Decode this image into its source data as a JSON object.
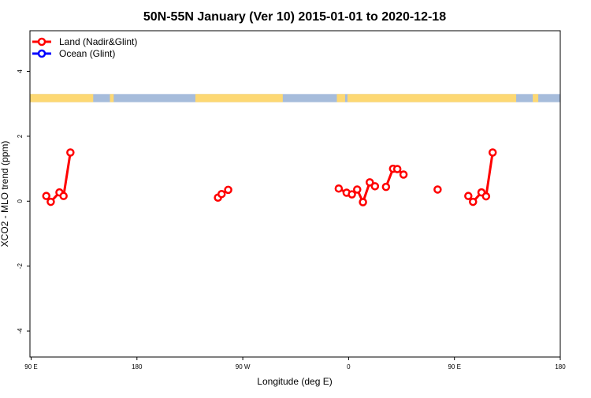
{
  "chart_data": {
    "type": "line",
    "title": "50N-55N January (Ver 10)   2015-01-01 to 2020-12-18",
    "xlabel": "Longitude (deg E)",
    "ylabel": "XCO2 - MLO trend (ppm)",
    "xlim": [
      89,
      540
    ],
    "ylim": [
      -4.8,
      5.25
    ],
    "x_ticks": [
      90,
      180,
      270,
      360,
      450,
      540
    ],
    "x_tick_labels": [
      "90 E",
      "180",
      "90 W",
      "0",
      "90 E",
      "180"
    ],
    "y_ticks": [
      -4,
      -2,
      0,
      2,
      4
    ],
    "y_tick_labels": [
      "-4",
      "-2",
      "0",
      "2",
      "4"
    ],
    "grid": false,
    "legend": {
      "placement": "top-left",
      "entries": [
        {
          "label": "Land (Nadir&Glint)",
          "color": "#ff0000"
        },
        {
          "label": "Ocean (Glint)",
          "color": "#0000ff"
        }
      ]
    },
    "map_strip": {
      "land_color": "#fdd873",
      "ocean_color": "#a6bcdb",
      "y_range": [
        3.05,
        3.3
      ],
      "land_lon_ranges": [
        [
          89,
          142.8
        ],
        [
          157,
          160.2
        ],
        [
          229.7,
          304
        ],
        [
          350,
          357
        ],
        [
          359,
          502.5
        ],
        [
          516.6,
          521.3
        ]
      ]
    },
    "series": [
      {
        "name": "Land (Nadir&Glint)",
        "color": "#ff0000",
        "segments": [
          [
            [
              102.9,
              0.16
            ],
            [
              106.7,
              -0.02
            ],
            [
              114.1,
              0.27
            ],
            [
              117.6,
              0.16
            ],
            [
              123.4,
              1.5
            ]
          ],
          [
            [
              248.9,
              0.11
            ],
            [
              252.0,
              0.22
            ],
            [
              257.6,
              0.35
            ]
          ],
          [
            [
              351.6,
              0.39
            ],
            [
              358.3,
              0.26
            ],
            [
              362.8,
              0.21
            ],
            [
              367.3,
              0.36
            ],
            [
              372.2,
              -0.03
            ],
            [
              378.0,
              0.58
            ],
            [
              382.4,
              0.46
            ]
          ],
          [
            [
              391.8,
              0.44
            ],
            [
              397.8,
              1.0
            ],
            [
              401.4,
              0.99
            ],
            [
              406.7,
              0.82
            ]
          ],
          [
            [
              435.7,
              0.36
            ]
          ],
          [
            [
              461.8,
              0.16
            ],
            [
              465.8,
              -0.02
            ],
            [
              473.0,
              0.27
            ],
            [
              476.9,
              0.15
            ],
            [
              482.5,
              1.5
            ]
          ]
        ]
      },
      {
        "name": "Ocean (Glint)",
        "color": "#0000ff",
        "segments": []
      }
    ]
  }
}
